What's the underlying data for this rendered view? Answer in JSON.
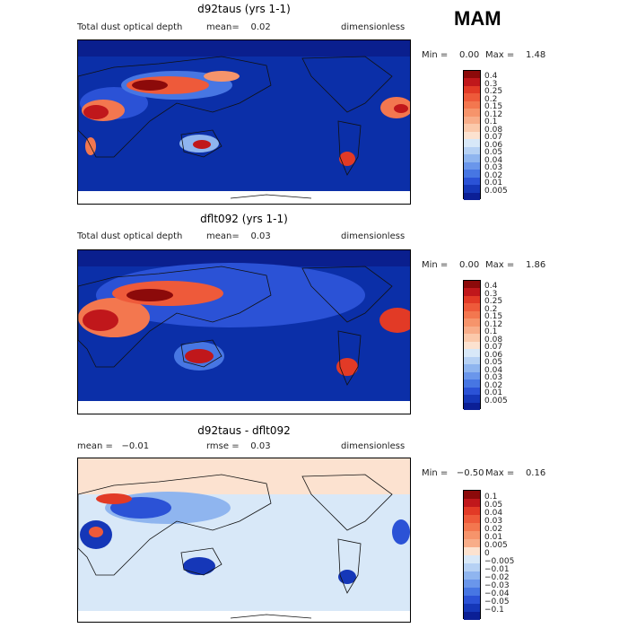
{
  "season": "MAM",
  "panels": [
    {
      "title": "d92taus (yrs 1-1)",
      "left_label": "Total dust optical depth",
      "mean_text": "mean=    0.02",
      "unit": "dimensionless",
      "min_text": "Min =    0.00",
      "max_text": "Max =    1.48"
    },
    {
      "title": "dflt092 (yrs 1-1)",
      "left_label": "Total dust optical depth",
      "mean_text": "mean=    0.03",
      "unit": "dimensionless",
      "min_text": "Min =    0.00",
      "max_text": "Max =    1.86"
    },
    {
      "title": "d92taus - dflt092",
      "left_label": "mean =   −0.01",
      "mean_text": "rmse =    0.03",
      "unit": "dimensionless",
      "min_text": "Min =   −0.50",
      "max_text": "Max =    0.16"
    }
  ],
  "chart_data": [
    {
      "type": "heatmap",
      "title": "d92taus (yrs 1-1)",
      "variable": "Total dust optical depth",
      "units": "dimensionless",
      "mean": 0.02,
      "min": 0.0,
      "max": 1.48,
      "colorbar_levels": [
        "0.4",
        "0.3",
        "0.25",
        "0.2",
        "0.15",
        "0.12",
        "0.1",
        "0.08",
        "0.07",
        "0.06",
        "0.05",
        "0.04",
        "0.03",
        "0.02",
        "0.01",
        "0.005"
      ],
      "colorbar_colors": [
        "#8c0a0a",
        "#c0171b",
        "#e23a26",
        "#ee5a3a",
        "#f3774f",
        "#f6946b",
        "#f8ad89",
        "#fbc9ab",
        "#fce2d0",
        "#d8e8f8",
        "#b6d1f4",
        "#8fb5ef",
        "#6a96eb",
        "#4776e3",
        "#2b52d6",
        "#1537b8",
        "#0b1f96"
      ]
    },
    {
      "type": "heatmap",
      "title": "dflt092 (yrs 1-1)",
      "variable": "Total dust optical depth",
      "units": "dimensionless",
      "mean": 0.03,
      "min": 0.0,
      "max": 1.86,
      "colorbar_levels": [
        "0.4",
        "0.3",
        "0.25",
        "0.2",
        "0.15",
        "0.12",
        "0.1",
        "0.08",
        "0.07",
        "0.06",
        "0.05",
        "0.04",
        "0.03",
        "0.02",
        "0.01",
        "0.005"
      ],
      "colorbar_colors": [
        "#8c0a0a",
        "#c0171b",
        "#e23a26",
        "#ee5a3a",
        "#f3774f",
        "#f6946b",
        "#f8ad89",
        "#fbc9ab",
        "#fce2d0",
        "#d8e8f8",
        "#b6d1f4",
        "#8fb5ef",
        "#6a96eb",
        "#4776e3",
        "#2b52d6",
        "#1537b8",
        "#0b1f96"
      ]
    },
    {
      "type": "heatmap",
      "title": "d92taus - dflt092",
      "units": "dimensionless",
      "mean": -0.01,
      "rmse": 0.03,
      "min": -0.5,
      "max": 0.16,
      "colorbar_levels": [
        "0.1",
        "0.05",
        "0.04",
        "0.03",
        "0.02",
        "0.01",
        "0.005",
        "0",
        "−0.005",
        "−0.01",
        "−0.02",
        "−0.03",
        "−0.04",
        "−0.05",
        "−0.1"
      ],
      "colorbar_colors": [
        "#8c0a0a",
        "#c0171b",
        "#e23a26",
        "#ee5a3a",
        "#f3774f",
        "#f6946b",
        "#f8ad89",
        "#fce2d0",
        "#d8e8f8",
        "#b6d1f4",
        "#8fb5ef",
        "#6a96eb",
        "#4776e3",
        "#2b52d6",
        "#1537b8",
        "#0b1f96"
      ]
    }
  ]
}
